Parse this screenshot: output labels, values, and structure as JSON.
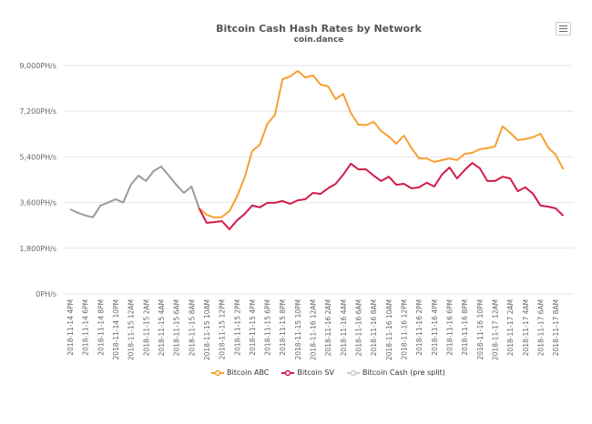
{
  "chart_data": {
    "type": "line",
    "title": "Bitcoin Cash Hash Rates by Network",
    "subtitle": "coin.dance",
    "ylim": [
      0,
      9000
    ],
    "y_ticks": [
      "0PH/s",
      "1,800PH/s",
      "3,600PH/s",
      "5,400PH/s",
      "7,200PH/s",
      "9,000PH/s"
    ],
    "y_tick_values": [
      0,
      1800,
      3600,
      5400,
      7200,
      9000
    ],
    "x_tick_labels": [
      "2018-11-14 4PM",
      "2018-11-14 6PM",
      "2018-11-14 8PM",
      "2018-11-14 10PM",
      "2018-11-15 12AM",
      "2018-11-15 2AM",
      "2018-11-15 4AM",
      "2018-11-15 6AM",
      "2018-11-15 8AM",
      "2018-11-15 10AM",
      "2018-11-15 12PM",
      "2018-11-15 2PM",
      "2018-11-15 4PM",
      "2018-11-15 6PM",
      "2018-11-15 8PM",
      "2018-11-15 10PM",
      "2018-11-16 12AM",
      "2018-11-16 2AM",
      "2018-11-16 4AM",
      "2018-11-16 6AM",
      "2018-11-16 8AM",
      "2018-11-16 10AM",
      "2018-11-16 12PM",
      "2018-11-16 2PM",
      "2018-11-16 4PM",
      "2018-11-16 6PM",
      "2018-11-16 8PM",
      "2018-11-16 10PM",
      "2018-11-17 12AM",
      "2018-11-17 2AM",
      "2018-11-17 4AM",
      "2018-11-17 6AM",
      "2018-11-17 8AM"
    ],
    "grid": true,
    "legend_position": "bottom",
    "series": [
      {
        "name": "Bitcoin ABC",
        "color": "#f7a030",
        "start_index": 17,
        "values": [
          3370,
          3120,
          3010,
          3030,
          3260,
          3840,
          4590,
          5630,
          5880,
          6700,
          7060,
          8460,
          8570,
          8790,
          8530,
          8610,
          8250,
          8180,
          7670,
          7880,
          7130,
          6670,
          6650,
          6780,
          6420,
          6200,
          5920,
          6240,
          5740,
          5340,
          5340,
          5200,
          5270,
          5340,
          5270,
          5520,
          5560,
          5700,
          5740,
          5810,
          6600,
          6350,
          6060,
          6100,
          6170,
          6310,
          5770,
          5490,
          4910
        ]
      },
      {
        "name": "Bitcoin SV",
        "color": "#d01c4a",
        "start_index": 17,
        "values": [
          3370,
          2800,
          2830,
          2870,
          2550,
          2900,
          3150,
          3480,
          3410,
          3590,
          3590,
          3660,
          3550,
          3690,
          3730,
          3980,
          3940,
          4160,
          4340,
          4700,
          5130,
          4910,
          4910,
          4660,
          4450,
          4620,
          4300,
          4340,
          4160,
          4200,
          4380,
          4230,
          4700,
          4980,
          4550,
          4880,
          5160,
          4950,
          4450,
          4450,
          4620,
          4550,
          4050,
          4200,
          3950,
          3480,
          3440,
          3370,
          3080
        ]
      },
      {
        "name": "Bitcoin Cash (pre split)",
        "color": "#9e9a9a",
        "start_index": 0,
        "values": [
          3335,
          3200,
          3090,
          3020,
          3480,
          3600,
          3730,
          3600,
          4300,
          4660,
          4450,
          4840,
          5020,
          4660,
          4300,
          3980,
          4230,
          3370
        ]
      }
    ]
  }
}
